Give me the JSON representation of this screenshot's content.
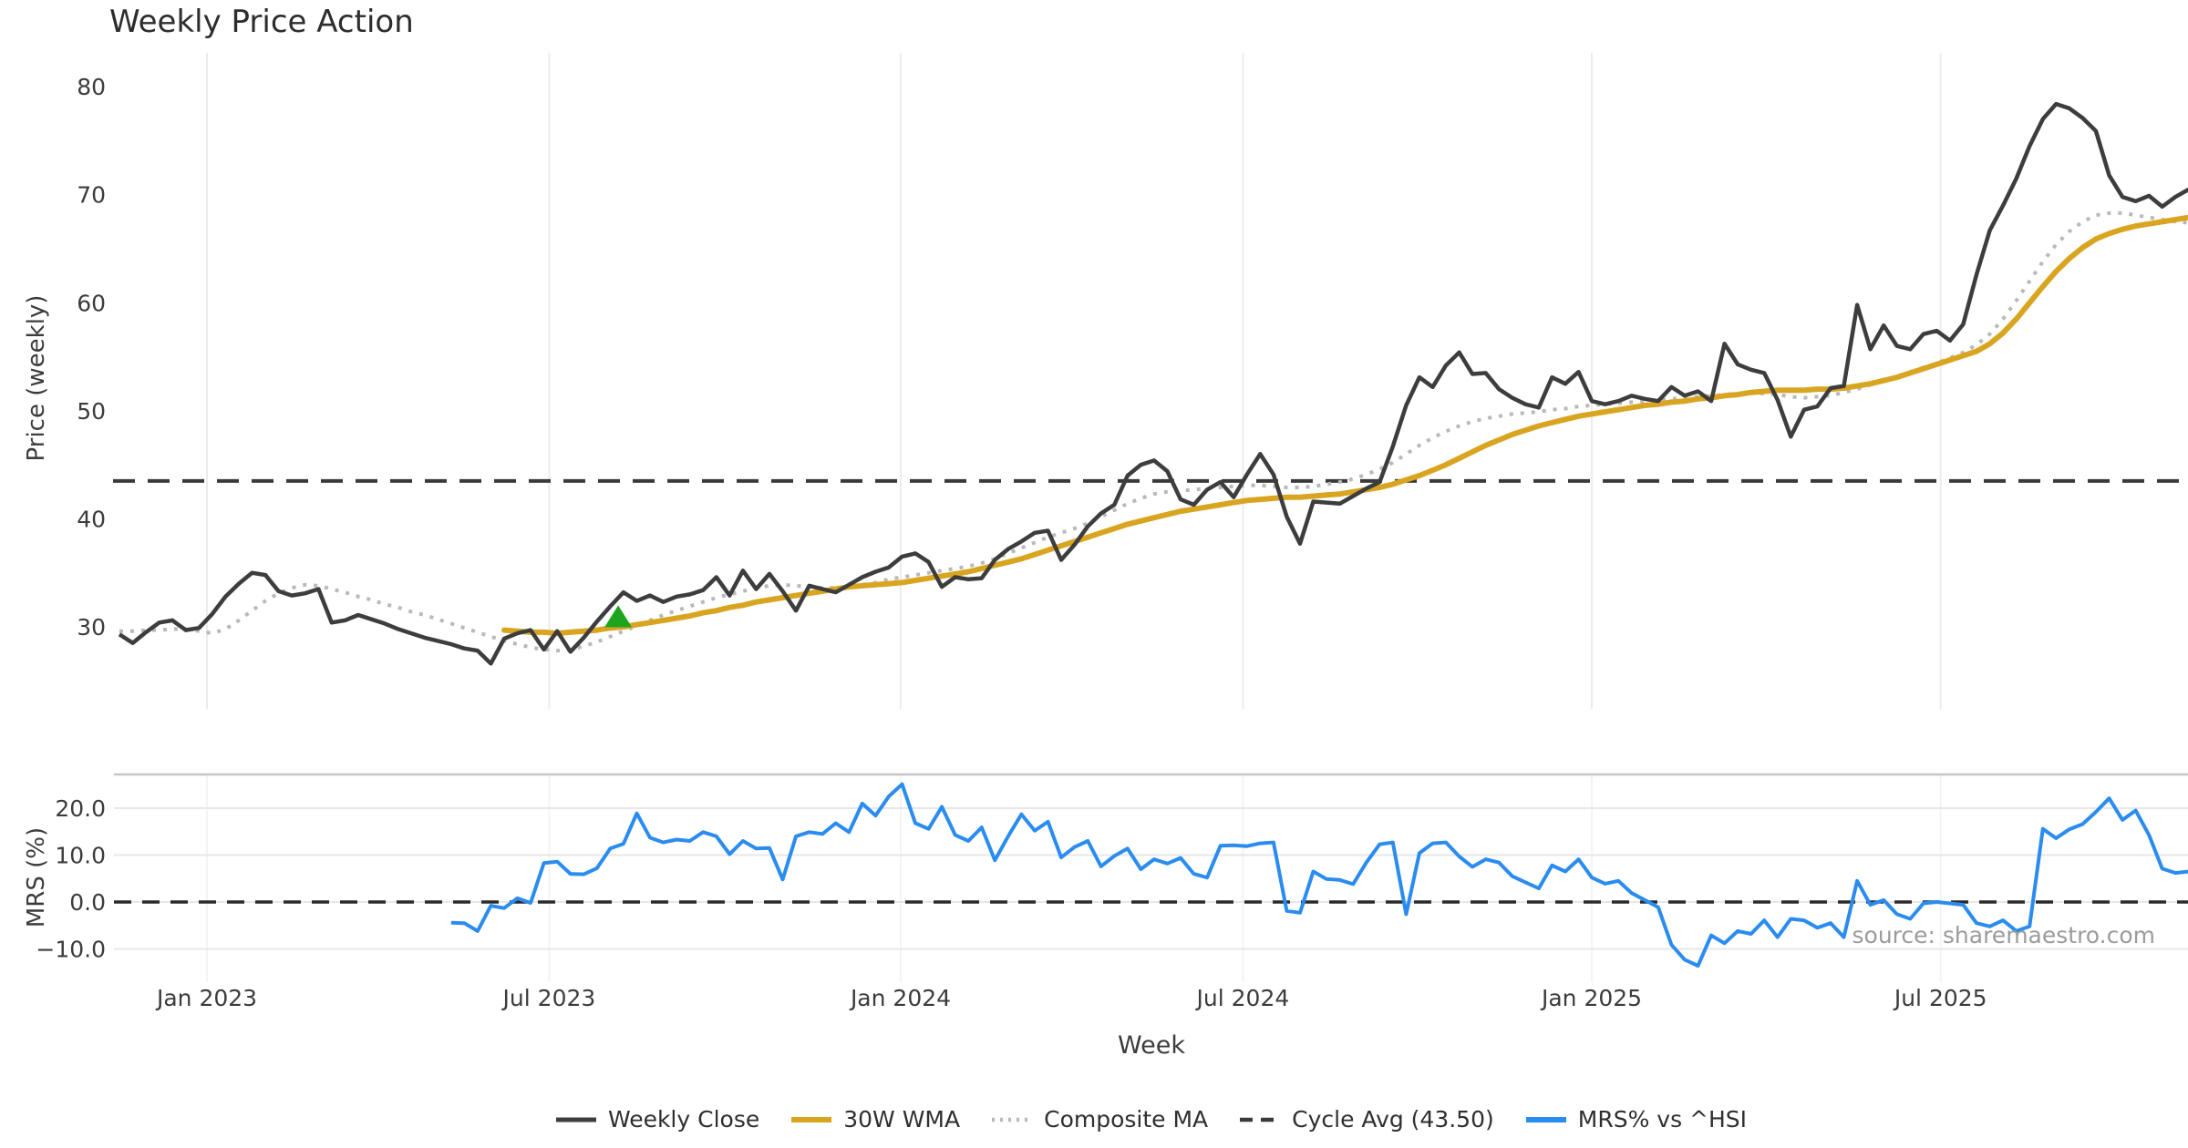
{
  "page": {
    "title": "Weekly Price Action",
    "x_axis_title": "Week",
    "source_credit": "source: sharemaestro.com"
  },
  "colors": {
    "weekly_close": "#3d3d3d",
    "wma_30w": "#d9a521",
    "composite_ma": "#b9b9b9",
    "cycle_avg": "#3a3a3a",
    "mrs_line": "#2b8cf0",
    "buy_marker": "#1ea51e",
    "grid_vertical": "#ececec",
    "grid_horizontal": "#e7e7e7",
    "panel_divider": "#c6c6c6",
    "tick_text": "#3c3c3c",
    "source_text": "#9b9b9b"
  },
  "legend": {
    "items": [
      {
        "label": "Weekly Close",
        "swatch": "solid-dark"
      },
      {
        "label": "30W WMA",
        "swatch": "solid-gold"
      },
      {
        "label": "Composite MA",
        "swatch": "dotted-gray"
      },
      {
        "label": "Cycle Avg (43.50)",
        "swatch": "dashed-dark"
      },
      {
        "label": "MRS% vs ^HSI",
        "swatch": "solid-blue"
      }
    ]
  },
  "chart_data": [
    {
      "type": "line",
      "panel": "price",
      "title": "Weekly Price Action",
      "xlabel": "Week",
      "ylabel": "Price (weekly)",
      "x_unit": "week index, week 0 = mid-Nov 2022, weekly spacing",
      "ylim": [
        24,
        82
      ],
      "grid": "vertical-only",
      "yticks": [
        {
          "label": "80",
          "value": 80
        },
        {
          "label": "70",
          "value": 70
        },
        {
          "label": "60",
          "value": 60
        },
        {
          "label": "50",
          "value": 50
        },
        {
          "label": "40",
          "value": 40
        },
        {
          "label": "30",
          "value": 30
        }
      ],
      "xticks": [
        {
          "label": "Jan 2023",
          "week": 6.6
        },
        {
          "label": "Jul 2023",
          "week": 32.4
        },
        {
          "label": "Jan 2024",
          "week": 58.9
        },
        {
          "label": "Jul 2024",
          "week": 84.7
        },
        {
          "label": "Jan 2025",
          "week": 111.0
        },
        {
          "label": "Jul 2025",
          "week": 137.3
        }
      ],
      "series": [
        {
          "name": "Weekly Close",
          "style": "solid",
          "color": "#3d3d3d",
          "start_week": 0,
          "values": [
            29.3,
            28.5,
            29.5,
            30.4,
            30.6,
            29.7,
            29.9,
            31.2,
            32.8,
            34.0,
            35.0,
            34.8,
            33.3,
            32.9,
            33.1,
            33.5,
            30.4,
            30.6,
            31.1,
            30.7,
            30.3,
            29.8,
            29.4,
            29.0,
            28.7,
            28.4,
            28.0,
            27.8,
            26.6,
            28.9,
            29.4,
            29.7,
            27.9,
            29.6,
            27.7,
            29.0,
            30.5,
            31.9,
            33.2,
            32.4,
            32.9,
            32.3,
            32.8,
            33.0,
            33.4,
            34.6,
            32.9,
            35.2,
            33.5,
            34.9,
            33.3,
            31.5,
            33.8,
            33.5,
            33.2,
            33.9,
            34.6,
            35.1,
            35.5,
            36.5,
            36.8,
            36.0,
            33.7,
            34.6,
            34.4,
            34.5,
            36.2,
            37.2,
            37.9,
            38.7,
            38.9,
            36.2,
            37.6,
            39.3,
            40.5,
            41.3,
            44.0,
            45.0,
            45.4,
            44.4,
            41.8,
            41.3,
            42.7,
            43.4,
            42.0,
            44.1,
            46.0,
            44.1,
            40.2,
            37.7,
            41.6,
            41.5,
            41.4,
            42.1,
            42.8,
            43.4,
            46.7,
            50.5,
            53.1,
            52.2,
            54.2,
            55.4,
            53.4,
            53.5,
            52.0,
            51.2,
            50.6,
            50.3,
            53.1,
            52.5,
            53.6,
            50.9,
            50.6,
            50.9,
            51.4,
            51.1,
            50.9,
            52.2,
            51.4,
            51.8,
            50.9,
            56.2,
            54.3,
            53.8,
            53.5,
            51.0,
            47.6,
            50.1,
            50.4,
            52.1,
            52.3,
            59.8,
            55.7,
            57.9,
            56.0,
            55.7,
            57.1,
            57.4,
            56.5,
            58.0,
            62.6,
            66.7,
            69.0,
            71.5,
            74.5,
            77.0,
            78.4,
            78.0,
            77.1,
            75.9,
            71.8,
            69.8,
            69.4,
            69.9,
            68.9,
            69.8,
            70.5
          ]
        },
        {
          "name": "30W WMA",
          "style": "solid",
          "color": "#d9a521",
          "start_week": 29,
          "values": [
            29.7,
            29.6,
            29.5,
            29.5,
            29.4,
            29.5,
            29.6,
            29.7,
            29.9,
            30.0,
            30.2,
            30.4,
            30.6,
            30.8,
            31.0,
            31.3,
            31.5,
            31.8,
            32.0,
            32.3,
            32.5,
            32.7,
            32.9,
            33.1,
            33.3,
            33.5,
            33.7,
            33.8,
            33.9,
            34.0,
            34.1,
            34.3,
            34.5,
            34.7,
            34.9,
            35.1,
            35.4,
            35.7,
            36.0,
            36.3,
            36.7,
            37.1,
            37.5,
            37.9,
            38.3,
            38.7,
            39.1,
            39.5,
            39.8,
            40.1,
            40.4,
            40.7,
            40.9,
            41.1,
            41.3,
            41.5,
            41.7,
            41.8,
            41.9,
            42.0,
            42.0,
            42.1,
            42.2,
            42.3,
            42.5,
            42.7,
            42.9,
            43.2,
            43.6,
            44.0,
            44.5,
            45.0,
            45.6,
            46.2,
            46.8,
            47.3,
            47.8,
            48.2,
            48.6,
            48.9,
            49.2,
            49.5,
            49.7,
            49.9,
            50.1,
            50.3,
            50.5,
            50.6,
            50.8,
            50.9,
            51.1,
            51.2,
            51.4,
            51.5,
            51.7,
            51.8,
            51.9,
            51.9,
            51.9,
            52.0,
            52.0,
            52.1,
            52.3,
            52.5,
            52.8,
            53.1,
            53.5,
            53.9,
            54.3,
            54.7,
            55.1,
            55.5,
            56.2,
            57.2,
            58.5,
            60.0,
            61.5,
            62.9,
            64.1,
            65.1,
            65.9,
            66.4,
            66.8,
            67.1,
            67.3,
            67.5,
            67.7,
            67.9
          ]
        },
        {
          "name": "Composite MA",
          "style": "dotted",
          "color": "#b9b9b9",
          "start_week": 0,
          "values": [
            29.6,
            29.6,
            29.7,
            29.7,
            29.8,
            29.8,
            29.6,
            29.4,
            29.8,
            30.6,
            31.5,
            32.4,
            33.1,
            33.6,
            33.9,
            33.8,
            33.5,
            33.2,
            32.8,
            32.5,
            32.1,
            31.8,
            31.4,
            31.1,
            30.7,
            30.3,
            29.9,
            29.5,
            29.1,
            28.7,
            28.4,
            28.1,
            27.9,
            27.8,
            27.9,
            28.2,
            28.6,
            29.1,
            29.6,
            30.1,
            30.6,
            31.1,
            31.5,
            31.9,
            32.3,
            32.7,
            33.0,
            33.3,
            33.6,
            33.8,
            33.9,
            33.8,
            33.7,
            33.6,
            33.6,
            33.7,
            33.9,
            34.1,
            34.4,
            34.6,
            34.8,
            35.0,
            35.2,
            35.4,
            35.6,
            35.9,
            36.3,
            36.8,
            37.3,
            37.8,
            38.3,
            38.7,
            39.1,
            39.6,
            40.2,
            40.8,
            41.4,
            41.9,
            42.3,
            42.5,
            42.6,
            42.7,
            42.8,
            42.9,
            43.0,
            43.1,
            43.1,
            43.0,
            42.9,
            42.9,
            43.0,
            43.2,
            43.4,
            43.7,
            44.1,
            44.6,
            45.2,
            46.0,
            46.8,
            47.5,
            48.1,
            48.6,
            49.0,
            49.3,
            49.5,
            49.7,
            49.8,
            49.9,
            50.1,
            50.2,
            50.4,
            50.5,
            50.6,
            50.7,
            50.8,
            50.9,
            51.0,
            51.1,
            51.2,
            51.3,
            51.4,
            51.5,
            51.6,
            51.6,
            51.6,
            51.5,
            51.3,
            51.2,
            51.3,
            51.4,
            51.7,
            52.0,
            52.4,
            52.8,
            53.2,
            53.6,
            54.0,
            54.4,
            54.9,
            55.4,
            56.1,
            57.1,
            58.5,
            60.2,
            62.0,
            63.8,
            65.4,
            66.6,
            67.5,
            68.1,
            68.3,
            68.3,
            68.1,
            67.9,
            67.7,
            67.5,
            67.4
          ]
        },
        {
          "name": "Cycle Avg (43.50)",
          "style": "dashed",
          "color": "#3a3a3a",
          "constant": 43.5
        }
      ],
      "markers": [
        {
          "name": "buy-signal",
          "shape": "triangle-up",
          "color": "#1ea51e",
          "week": 37.6,
          "value": 30.9
        }
      ]
    },
    {
      "type": "line",
      "panel": "mrs",
      "xlabel": "Week",
      "ylabel": "MRS (%)",
      "ylim": [
        -17,
        27
      ],
      "grid": "horizontal",
      "yticks": [
        {
          "label": "20.0",
          "value": 20
        },
        {
          "label": "10.0",
          "value": 10
        },
        {
          "label": "0.0",
          "value": 0
        },
        {
          "label": "−10.0",
          "value": -10
        }
      ],
      "series": [
        {
          "name": "MRS% vs ^HSI",
          "style": "solid",
          "color": "#2b8cf0",
          "start_week": 25,
          "values": [
            -4.4,
            -4.5,
            -6.2,
            -0.8,
            -1.3,
            0.8,
            -0.2,
            8.3,
            8.6,
            6.0,
            5.9,
            7.2,
            11.4,
            12.4,
            18.9,
            13.7,
            12.7,
            13.3,
            13.0,
            14.9,
            14.0,
            10.2,
            13.0,
            11.4,
            11.5,
            4.8,
            14.0,
            14.9,
            14.5,
            16.8,
            14.9,
            21.0,
            18.4,
            22.5,
            25.1,
            16.8,
            15.6,
            20.3,
            14.3,
            13.0,
            15.9,
            8.9,
            14.0,
            18.7,
            15.2,
            17.1,
            9.5,
            11.7,
            13.0,
            7.6,
            9.8,
            11.4,
            7.0,
            9.1,
            8.2,
            9.4,
            6.0,
            5.2,
            12.0,
            12.1,
            11.9,
            12.5,
            12.7,
            -1.9,
            -2.3,
            6.5,
            4.9,
            4.7,
            3.8,
            8.4,
            12.3,
            12.7,
            -2.6,
            10.4,
            12.5,
            12.7,
            9.7,
            7.5,
            9.1,
            8.4,
            5.5,
            4.2,
            2.9,
            7.8,
            6.5,
            9.1,
            5.2,
            3.9,
            4.5,
            1.9,
            0.4,
            -1.1,
            -9.1,
            -12.3,
            -13.6,
            -7.1,
            -8.8,
            -6.2,
            -6.8,
            -3.9,
            -7.5,
            -3.6,
            -3.9,
            -5.5,
            -4.5,
            -7.5,
            4.5,
            -0.6,
            0.4,
            -2.6,
            -3.6,
            -0.3,
            0.0,
            -0.3,
            -0.6,
            -4.5,
            -5.2,
            -3.9,
            -6.2,
            -5.2,
            15.6,
            13.6,
            15.5,
            16.6,
            19.2,
            22.1,
            17.5,
            19.5,
            14.3,
            7.1,
            6.2,
            6.5
          ]
        },
        {
          "name": "Zero line",
          "style": "dashed",
          "color": "#2a2a2a",
          "constant": 0
        }
      ]
    }
  ]
}
